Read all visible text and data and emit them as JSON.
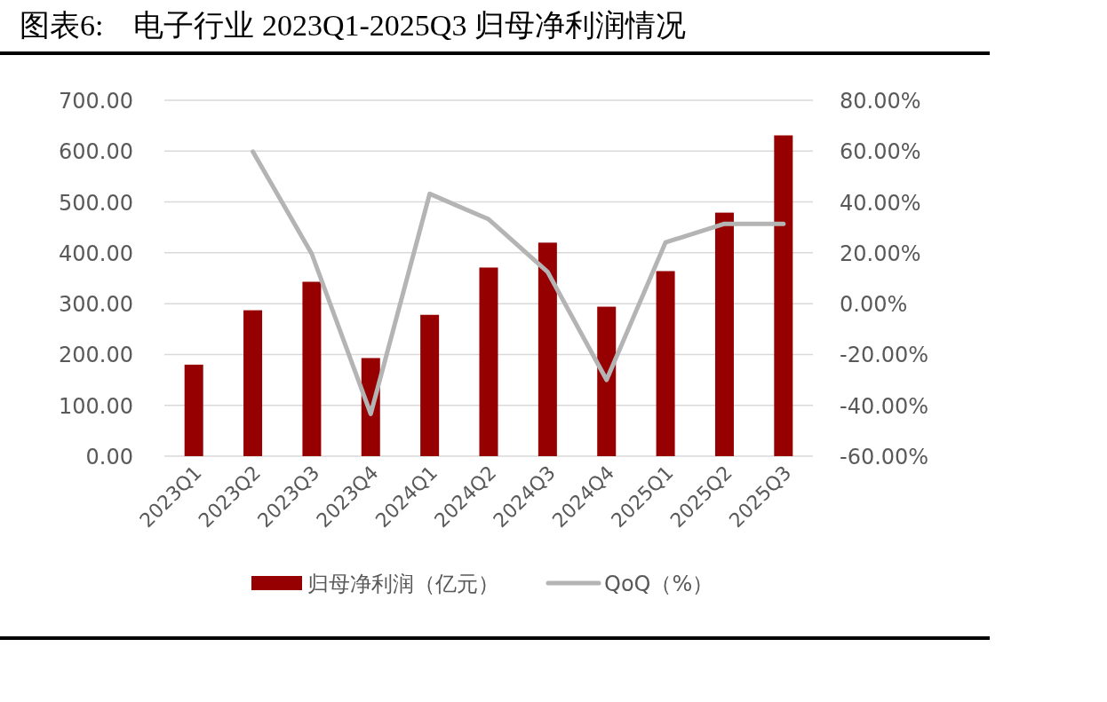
{
  "chart_data": {
    "type": "bar",
    "title": "图表6:　电子行业 2023Q1-2025Q3 归母净利润情况",
    "categories": [
      "2023Q1",
      "2023Q2",
      "2023Q3",
      "2023Q4",
      "2024Q1",
      "2024Q2",
      "2024Q3",
      "2024Q4",
      "2025Q1",
      "2025Q2",
      "2025Q3"
    ],
    "series": [
      {
        "name": "归母净利润（亿元）",
        "color": "#960000",
        "values": [
          180,
          287,
          343,
          193,
          278,
          371,
          420,
          294,
          364,
          479,
          631
        ]
      },
      {
        "name": "QoQ（%）",
        "type": "line",
        "axis": "y2",
        "color": "#b4b4b4",
        "values": [
          null,
          59.8,
          19.6,
          -43.4,
          43.2,
          33.2,
          12.5,
          -30.0,
          24.1,
          31.4,
          31.4
        ]
      }
    ],
    "ylim": [
      0,
      700
    ],
    "yticks": [
      {
        "value": 0,
        "label": "0.00"
      },
      {
        "value": 100,
        "label": "100.00"
      },
      {
        "value": 200,
        "label": "200.00"
      },
      {
        "value": 300,
        "label": "300.00"
      },
      {
        "value": 400,
        "label": "400.00"
      },
      {
        "value": 500,
        "label": "500.00"
      },
      {
        "value": 600,
        "label": "600.00"
      },
      {
        "value": 700,
        "label": "700.00"
      }
    ],
    "y2lim": [
      -60,
      80
    ],
    "y2ticks": [
      {
        "value": -60,
        "label": "-60.00%"
      },
      {
        "value": -40,
        "label": "-40.00%"
      },
      {
        "value": -20,
        "label": "-20.00%"
      },
      {
        "value": 0,
        "label": "0.00%"
      },
      {
        "value": 20,
        "label": "20.00%"
      },
      {
        "value": 40,
        "label": "40.00%"
      },
      {
        "value": 60,
        "label": "60.00%"
      },
      {
        "value": 80,
        "label": "80.00%"
      }
    ],
    "grid": "y",
    "legend": "bottom",
    "line_style": "solid",
    "marker": "none"
  }
}
